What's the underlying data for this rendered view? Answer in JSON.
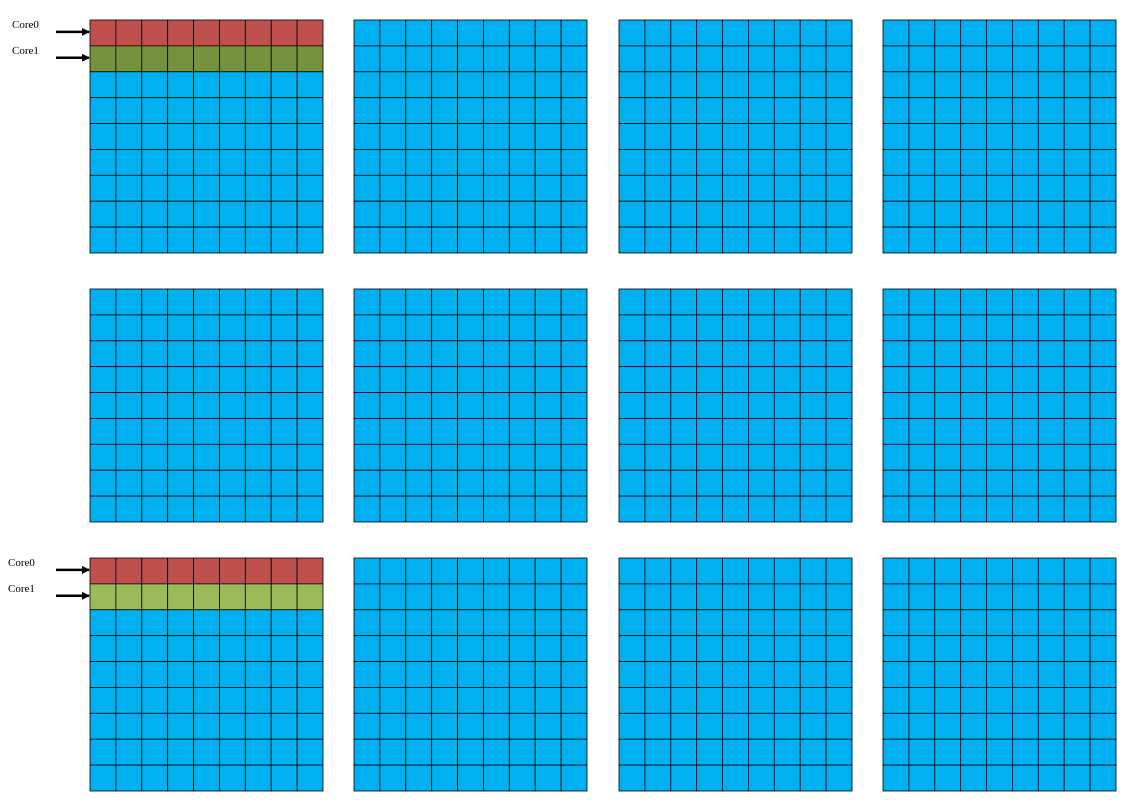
{
  "diagram": {
    "grid_rows": 3,
    "grid_cols": 4,
    "cells_per_side": 9,
    "colors": {
      "default_cell": "#00b0f0",
      "core0_row": "#c0504d",
      "core1_row_top": "#76923c",
      "core1_row_bottom": "#9bbb59",
      "cell_border": "#000000",
      "arrow": "#000000"
    },
    "annotations": [
      {
        "grid_row": 0,
        "grid_col": 0,
        "rows": [
          {
            "label": "Core0",
            "matrix_row": 0,
            "color": "#c0504d"
          },
          {
            "label": "Core1",
            "matrix_row": 1,
            "color": "#76923c"
          }
        ]
      },
      {
        "grid_row": 2,
        "grid_col": 0,
        "rows": [
          {
            "label": "Core0",
            "matrix_row": 0,
            "color": "#c0504d"
          },
          {
            "label": "Core1",
            "matrix_row": 1,
            "color": "#9bbb59"
          }
        ]
      }
    ]
  }
}
